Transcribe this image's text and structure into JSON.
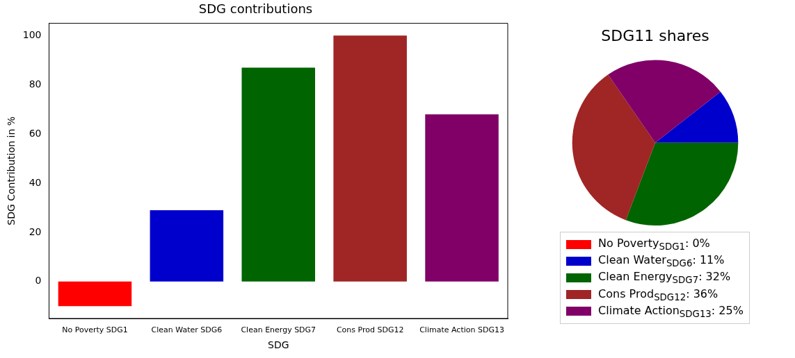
{
  "chart_data": [
    {
      "type": "bar",
      "title": "SDG contributions",
      "xlabel": "SDG",
      "ylabel": "SDG Contribution in %",
      "categories": [
        "No Poverty SDG1",
        "Clean Water SDG6",
        "Clean Energy SDG7",
        "Cons Prod SDG12",
        "Climate Action SDG13"
      ],
      "values": [
        -10,
        29,
        87,
        100,
        68
      ],
      "colors": [
        "#ff0000",
        "#0000cc",
        "#006400",
        "#a02525",
        "#800068"
      ],
      "ylim": [
        -15,
        105
      ],
      "yticks": [
        0,
        20,
        40,
        60,
        80,
        100
      ],
      "grid": false,
      "legend": false
    },
    {
      "type": "pie",
      "title": "SDG11 shares",
      "categories": [
        "No Poverty$_{SDG1}$",
        "Clean Water$_{SDG6}$",
        "Clean Energy$_{SDG7}$",
        "Cons Prod$_{SDG12}$",
        "Climate Action$_{SDG13}$"
      ],
      "values": [
        0,
        11,
        32,
        36,
        25
      ],
      "value_labels": [
        ": 0%",
        ": 11%",
        ": 32%",
        ": 36%",
        ": 25%"
      ],
      "colors": [
        "#ff0000",
        "#0000cc",
        "#006400",
        "#a02525",
        "#800068"
      ],
      "legend": "bottom"
    }
  ]
}
